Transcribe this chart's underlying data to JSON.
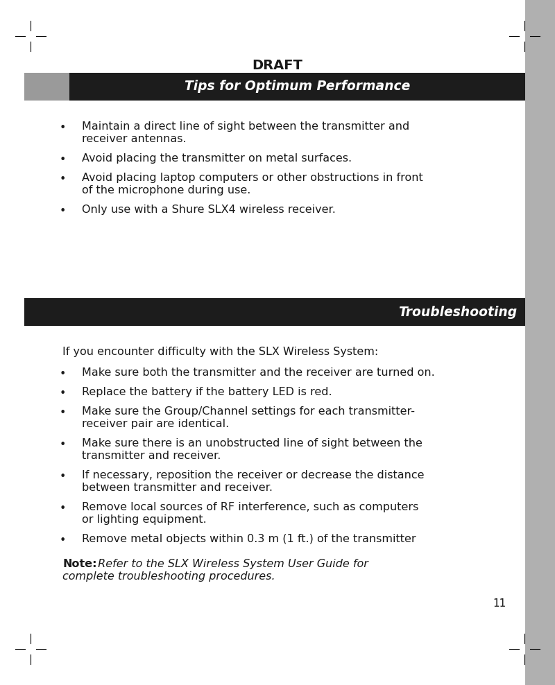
{
  "page_number": "11",
  "draft_text": "DRAFT",
  "background_color": "#ffffff",
  "header_bar_color": "#1c1c1c",
  "header_gray_color": "#9a9a9a",
  "section1_title": "Tips for Optimum Performance",
  "section2_title": "Troubleshooting",
  "tips_bullets": [
    [
      "Maintain a direct line of sight between the transmitter and",
      "receiver antennas."
    ],
    [
      "Avoid placing the transmitter on metal surfaces."
    ],
    [
      "Avoid placing laptop computers or other obstructions in front",
      "of the microphone during use."
    ],
    [
      "Only use with a Shure SLX4 wireless receiver."
    ]
  ],
  "trouble_intro": "If you encounter difficulty with the SLX Wireless System:",
  "trouble_bullets": [
    [
      "Make sure both the transmitter and the receiver are turned on."
    ],
    [
      "Replace the battery if the battery LED is red."
    ],
    [
      "Make sure the Group/Channel settings for each transmitter-",
      "receiver pair are identical."
    ],
    [
      "Make sure there is an unobstructed line of sight between the",
      "transmitter and receiver."
    ],
    [
      "If necessary, reposition the receiver or decrease the distance",
      "between transmitter and receiver."
    ],
    [
      "Remove local sources of RF interference, such as computers",
      "or lighting equipment."
    ],
    [
      "Remove metal objects within 0.3 m (1 ft.) of the transmitter"
    ]
  ],
  "note_bold": "Note:",
  "note_italic_line1": " Refer to the SLX Wireless System User Guide for",
  "note_italic_line2": "complete troubleshooting procedures.",
  "right_bar_color": "#b0b0b0",
  "text_color": "#1a1a1a",
  "bullet_char": "•"
}
